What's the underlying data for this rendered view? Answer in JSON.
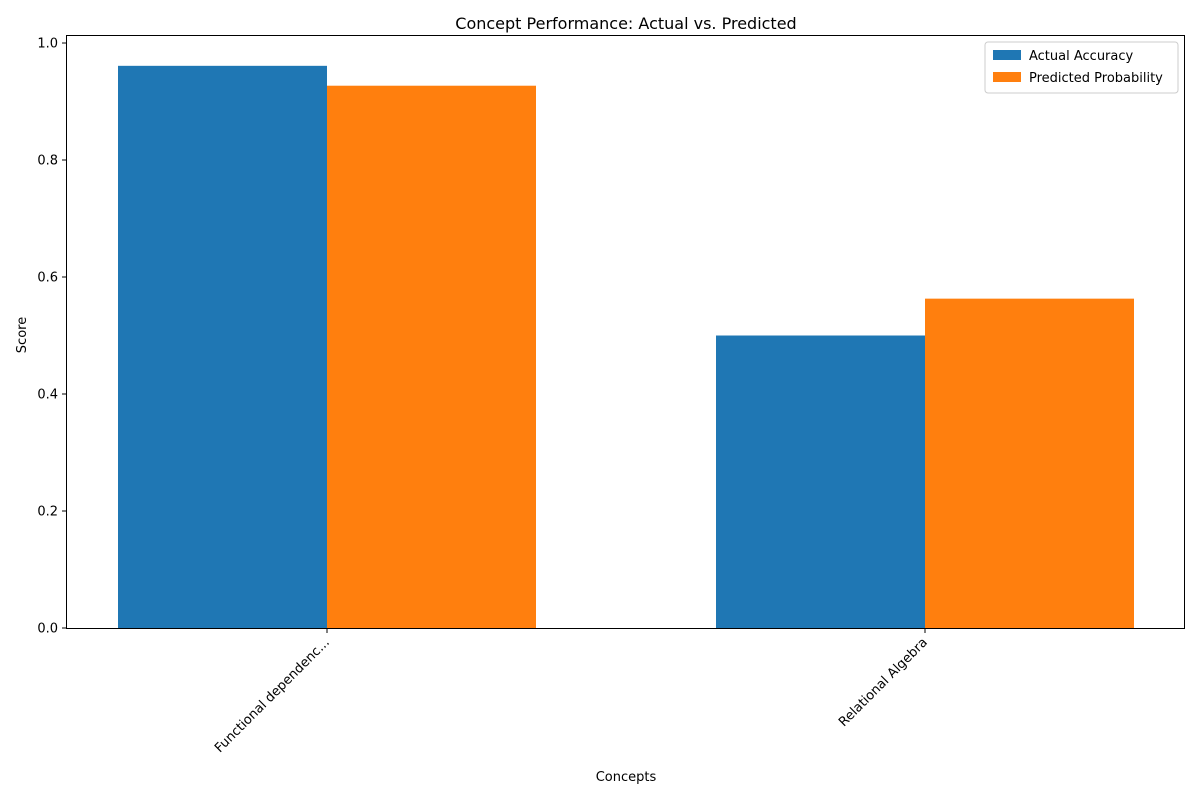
{
  "chart_data": {
    "type": "bar",
    "title": "Concept Performance: Actual vs. Predicted",
    "xlabel": "Concepts",
    "ylabel": "Score",
    "categories": [
      "Functional dependenc...",
      "Relational Algebra"
    ],
    "series": [
      {
        "name": "Actual Accuracy",
        "color": "#1f77b4",
        "values": [
          0.961,
          0.5
        ]
      },
      {
        "name": "Predicted Probability",
        "color": "#ff7f0e",
        "values": [
          0.927,
          0.563
        ]
      }
    ],
    "ylim": [
      0,
      1.0
    ],
    "yticks": [
      "0.0",
      "0.2",
      "0.4",
      "0.6",
      "0.8",
      "1.0"
    ],
    "grid": false,
    "legend_position": "top-right"
  }
}
